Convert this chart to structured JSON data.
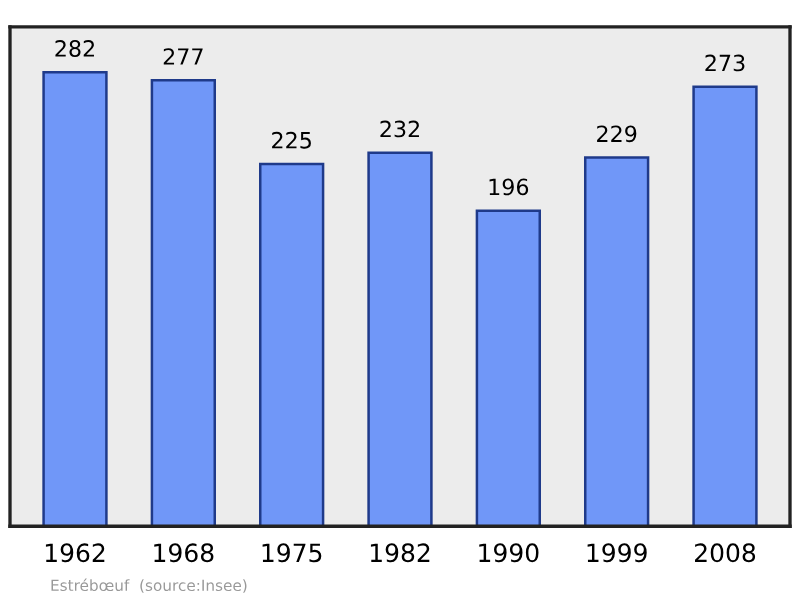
{
  "chart_data": {
    "type": "bar",
    "categories": [
      "1962",
      "1968",
      "1975",
      "1982",
      "1990",
      "1999",
      "2008"
    ],
    "values": [
      282,
      277,
      225,
      232,
      196,
      229,
      273
    ],
    "color": "#7097f8",
    "data_labels": true,
    "grid": false,
    "annotations": [
      "Estrébœuf  (source:Insee)"
    ]
  }
}
